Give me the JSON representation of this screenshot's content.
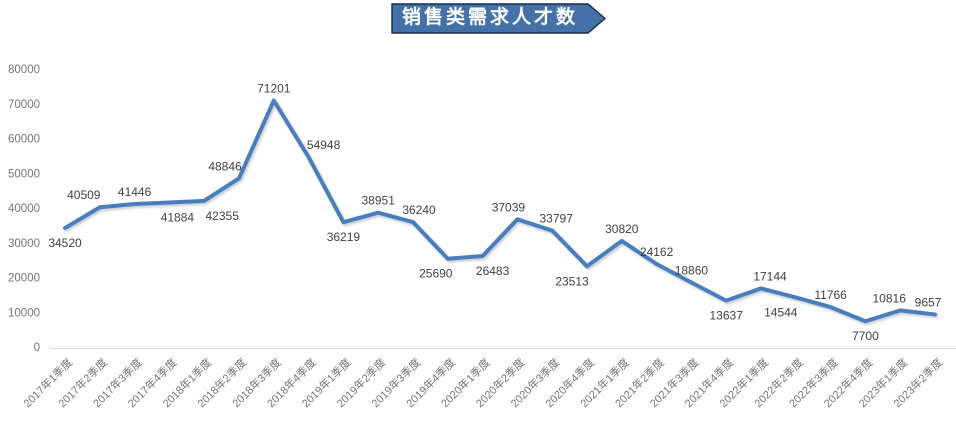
{
  "title": {
    "text": "销售类需求人才数"
  },
  "colors": {
    "series_line": "#4A7EBE",
    "banner_fill": "#4472A8",
    "banner_border": "#1B2A4A",
    "banner_text": "#FFFFFF",
    "axis_text": "#757575",
    "data_label_text": "#3F3F3F",
    "axis_line": "#D9D9D9"
  },
  "chart_data": {
    "type": "line",
    "title": "销售类需求人才数",
    "xlabel": "",
    "ylabel": "",
    "ylim": [
      0,
      80000
    ],
    "yticks": [
      0,
      10000,
      20000,
      30000,
      40000,
      50000,
      60000,
      70000,
      80000
    ],
    "grid": "off",
    "legend": "none",
    "data_labels": "on",
    "x_label_rotation": -45,
    "categories": [
      "2017年1季度",
      "2017年2季度",
      "2017年3季度",
      "2017年4季度",
      "2018年1季度",
      "2018年2季度",
      "2018年3季度",
      "2018年4季度",
      "2019年1季度",
      "2019年2季度",
      "2019年3季度",
      "2019年4季度",
      "2020年1季度",
      "2020年2季度",
      "2020年3季度",
      "2020年4季度",
      "2021年1季度",
      "2021年2季度",
      "2021年3季度",
      "2021年4季度",
      "2022年1季度",
      "2022年2季度",
      "2022年3季度",
      "2022年4季度",
      "2023年1季度",
      "2023年2季度"
    ],
    "values": [
      34520,
      40509,
      41446,
      41884,
      42355,
      48846,
      71201,
      54948,
      36219,
      38951,
      36240,
      25690,
      26483,
      37039,
      33797,
      23513,
      30820,
      24162,
      18860,
      13637,
      17144,
      14544,
      11766,
      7700,
      10816,
      9657
    ],
    "label_pos": [
      "below",
      "above",
      "above",
      "below",
      "below",
      "above",
      "above",
      "above",
      "below",
      "above",
      "above",
      "below",
      "below",
      "above",
      "above",
      "below",
      "above",
      "above",
      "above",
      "below",
      "above",
      "below",
      "above",
      "below",
      "above",
      "above"
    ],
    "label_dx": [
      0,
      -16,
      0,
      8,
      18,
      -14,
      0,
      15,
      0,
      0,
      6,
      -12,
      10,
      -9,
      4,
      -15,
      0,
      0,
      0,
      0,
      9,
      -15,
      0,
      0,
      -11,
      -7
    ]
  }
}
